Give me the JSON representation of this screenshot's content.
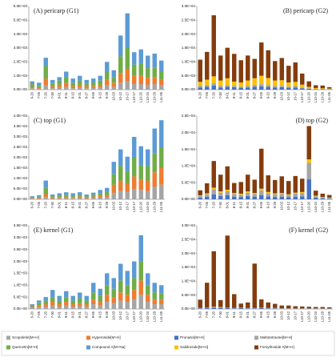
{
  "chart_data": [
    {
      "type": "bar",
      "stacked": true,
      "title": "(A) pericarp (G1)",
      "categories": [
        "6-20",
        "7-05",
        "7-20",
        "7-30",
        "8-01",
        "8-11",
        "8-15",
        "8-21",
        "8-27",
        "9-06",
        "9-15",
        "9-29",
        "10-03",
        "10-12",
        "10-17",
        "L10-17",
        "L10-20",
        "L10-24",
        "L10-29",
        "L11-05"
      ],
      "series": [
        {
          "color": "#a5a5a5",
          "values": [
            100,
            80,
            300,
            100,
            150,
            200,
            100,
            150,
            100,
            120,
            150,
            300,
            200,
            500,
            600,
            400,
            400,
            350,
            400,
            300
          ]
        },
        {
          "color": "#ed7d31",
          "values": [
            100,
            100,
            500,
            150,
            200,
            300,
            150,
            200,
            150,
            150,
            200,
            400,
            300,
            700,
            900,
            600,
            600,
            500,
            500,
            400
          ]
        },
        {
          "color": "#70ad47",
          "values": [
            200,
            150,
            900,
            200,
            300,
            400,
            250,
            300,
            200,
            250,
            300,
            600,
            400,
            1200,
            1500,
            800,
            900,
            700,
            700,
            600
          ]
        },
        {
          "color": "#5b9bd5",
          "values": [
            200,
            170,
            600,
            250,
            250,
            400,
            300,
            350,
            250,
            280,
            350,
            700,
            500,
            1500,
            2500,
            900,
            1000,
            900,
            1000,
            800
          ]
        }
      ],
      "ylim": [
        0,
        6000
      ],
      "yticks": [
        {
          "value": 0,
          "label": "0.0E+00"
        },
        {
          "value": 1000,
          "label": "1.0E+03"
        },
        {
          "value": 2000,
          "label": "2.0E+03"
        },
        {
          "value": 3000,
          "label": "3.0E+03"
        },
        {
          "value": 4000,
          "label": "4.0E+03"
        },
        {
          "value": 5000,
          "label": "5.0E+03"
        },
        {
          "value": 6000,
          "label": "6.0E+03"
        }
      ]
    },
    {
      "type": "bar",
      "stacked": true,
      "title": "(B) pericarp (G2)",
      "categories": [
        "6-20",
        "7-05",
        "7-20",
        "7-30",
        "8-01",
        "8-11",
        "8-15",
        "8-21",
        "8-27",
        "9-06",
        "9-15",
        "9-29",
        "10-03",
        "10-12",
        "10-17",
        "L10-17",
        "L10-20",
        "L10-24",
        "L10-29",
        "L11-05"
      ],
      "series": [
        {
          "color": "#4472c4",
          "values": [
            800,
            1000,
            1500,
            800,
            1000,
            900,
            700,
            800,
            1000,
            1200,
            1000,
            800,
            900,
            700,
            800,
            500,
            300,
            200,
            200,
            100
          ]
        },
        {
          "color": "#a5a5a5",
          "values": [
            500,
            600,
            800,
            500,
            600,
            500,
            400,
            500,
            600,
            800,
            700,
            500,
            500,
            400,
            500,
            300,
            200,
            100,
            100,
            100
          ]
        },
        {
          "color": "#ffc000",
          "values": [
            1500,
            2000,
            2500,
            2000,
            2500,
            1500,
            1500,
            2000,
            2500,
            3000,
            2500,
            2000,
            2000,
            1500,
            1500,
            1000,
            500,
            300,
            200,
            200
          ]
        },
        {
          "color": "#843c0c",
          "values": [
            8000,
            10000,
            22000,
            9000,
            11000,
            10000,
            8000,
            9000,
            7000,
            12000,
            10000,
            7000,
            8000,
            6000,
            7000,
            4000,
            2000,
            1000,
            1000,
            500
          ]
        }
      ],
      "ylim": [
        0,
        30000
      ],
      "yticks": [
        {
          "value": 0,
          "label": "0.0E+00"
        },
        {
          "value": 5000,
          "label": "5.0E+03"
        },
        {
          "value": 10000,
          "label": "1.0E+04"
        },
        {
          "value": 15000,
          "label": "1.5E+04"
        },
        {
          "value": 20000,
          "label": "2.0E+04"
        },
        {
          "value": 25000,
          "label": "2.5E+04"
        },
        {
          "value": 30000,
          "label": "3.0E+04"
        }
      ]
    },
    {
      "type": "bar",
      "stacked": true,
      "title": "(C) top (G1)",
      "categories": [
        "6-20",
        "7-05",
        "7-20",
        "7-30",
        "8-01",
        "8-11",
        "8-15",
        "8-21",
        "8-27",
        "9-06",
        "9-15",
        "9-29",
        "10-03",
        "10-12",
        "10-17",
        "L10-17",
        "L10-20",
        "L10-24",
        "L10-29",
        "L11-05"
      ],
      "series": [
        {
          "color": "#a5a5a5",
          "values": [
            30,
            40,
            100,
            40,
            50,
            60,
            50,
            60,
            40,
            60,
            80,
            100,
            300,
            400,
            350,
            500,
            450,
            400,
            600,
            700
          ]
        },
        {
          "color": "#ed7d31",
          "values": [
            30,
            40,
            150,
            50,
            60,
            70,
            60,
            70,
            50,
            70,
            100,
            100,
            400,
            500,
            400,
            600,
            500,
            500,
            700,
            800
          ]
        },
        {
          "color": "#70ad47",
          "values": [
            40,
            50,
            300,
            60,
            80,
            90,
            80,
            90,
            60,
            90,
            120,
            150,
            500,
            700,
            600,
            900,
            700,
            700,
            900,
            1000
          ]
        },
        {
          "color": "#5b9bd5",
          "values": [
            50,
            70,
            350,
            80,
            100,
            120,
            100,
            120,
            80,
            100,
            150,
            200,
            600,
            800,
            700,
            1000,
            900,
            800,
            1200,
            1300
          ]
        }
      ],
      "ylim": [
        0,
        4000
      ],
      "yticks": [
        {
          "value": 0,
          "label": "0.0E+00"
        },
        {
          "value": 500,
          "label": "5.0E+02"
        },
        {
          "value": 1000,
          "label": "1.0E+03"
        },
        {
          "value": 1500,
          "label": "1.5E+03"
        },
        {
          "value": 2000,
          "label": "2.0E+03"
        },
        {
          "value": 2500,
          "label": "2.5E+03"
        },
        {
          "value": 3000,
          "label": "3.0E+03"
        },
        {
          "value": 3500,
          "label": "3.5E+03"
        },
        {
          "value": 4000,
          "label": "4.0E+03"
        }
      ]
    },
    {
      "type": "bar",
      "stacked": true,
      "title": "(D) top (G2)",
      "categories": [
        "6-20",
        "7-05",
        "7-20",
        "7-30",
        "8-01",
        "8-11",
        "8-15",
        "8-21",
        "8-27",
        "9-06",
        "9-15",
        "9-29",
        "10-03",
        "10-12",
        "10-17",
        "L10-17",
        "L10-20",
        "L10-24",
        "L10-29",
        "L11-05"
      ],
      "series": [
        {
          "color": "#4472c4",
          "values": [
            500,
            800,
            1500,
            1000,
            1200,
            800,
            700,
            1000,
            800,
            1200,
            900,
            700,
            800,
            600,
            800,
            900,
            6000,
            500,
            300,
            200
          ]
        },
        {
          "color": "#a5a5a5",
          "values": [
            500,
            700,
            1500,
            1000,
            1200,
            800,
            700,
            1000,
            800,
            1500,
            900,
            800,
            800,
            700,
            900,
            1000,
            5000,
            400,
            300,
            200
          ]
        },
        {
          "color": "#ffc000",
          "values": [
            200,
            300,
            500,
            400,
            500,
            300,
            300,
            400,
            300,
            500,
            400,
            300,
            300,
            200,
            300,
            300,
            1000,
            200,
            100,
            100
          ]
        },
        {
          "color": "#843c0c",
          "values": [
            1500,
            3000,
            8000,
            5000,
            7000,
            3000,
            3500,
            5000,
            4000,
            12000,
            5000,
            4000,
            5000,
            4000,
            5000,
            4000,
            10000,
            1500,
            1000,
            800
          ]
        }
      ],
      "ylim": [
        0,
        25000
      ],
      "yticks": [
        {
          "value": 0,
          "label": "0.0E+00"
        },
        {
          "value": 5000,
          "label": "5.0E+03"
        },
        {
          "value": 10000,
          "label": "1.0E+04"
        },
        {
          "value": 15000,
          "label": "1.5E+04"
        },
        {
          "value": 20000,
          "label": "2.0E+04"
        },
        {
          "value": 25000,
          "label": "2.5E+04"
        }
      ]
    },
    {
      "type": "bar",
      "stacked": true,
      "title": "(E) kernel (G1)",
      "categories": [
        "6-20",
        "7-05",
        "7-20",
        "7-30",
        "8-01",
        "8-11",
        "8-15",
        "8-21",
        "8-27",
        "9-06",
        "9-15",
        "9-29",
        "10-03",
        "10-12",
        "10-17",
        "L10-17",
        "L10-20",
        "L10-24",
        "L10-29",
        "L11-05"
      ],
      "series": [
        {
          "name": "Scopoletin[M+H]",
          "color": "#a5a5a5",
          "values": [
            50,
            80,
            100,
            150,
            100,
            150,
            100,
            120,
            100,
            200,
            150,
            300,
            250,
            350,
            300,
            400,
            600,
            300,
            200,
            200
          ]
        },
        {
          "name": "Hyperoside[M+H]",
          "color": "#ed7d31",
          "values": [
            50,
            80,
            100,
            150,
            100,
            150,
            100,
            120,
            100,
            200,
            150,
            300,
            250,
            350,
            300,
            400,
            600,
            300,
            200,
            200
          ]
        },
        {
          "name": "Quercetin[M+H]",
          "color": "#70ad47",
          "values": [
            50,
            100,
            150,
            200,
            150,
            200,
            150,
            200,
            150,
            300,
            250,
            400,
            350,
            500,
            400,
            500,
            800,
            400,
            300,
            250
          ]
        },
        {
          "name": "Compound A[M+Na]",
          "color": "#5b9bd5",
          "values": [
            50,
            100,
            150,
            300,
            200,
            250,
            200,
            250,
            200,
            400,
            300,
            500,
            450,
            700,
            600,
            700,
            1100,
            500,
            400,
            350
          ]
        }
      ],
      "ylim": [
        0,
        3500
      ],
      "yticks": [
        {
          "value": 0,
          "label": "0.0E+00"
        },
        {
          "value": 500,
          "label": "5.0E+02"
        },
        {
          "value": 1000,
          "label": "1.0E+03"
        },
        {
          "value": 1500,
          "label": "1.5E+03"
        },
        {
          "value": 2000,
          "label": "2.0E+03"
        },
        {
          "value": 2500,
          "label": "2.5E+03"
        },
        {
          "value": 3000,
          "label": "3.0E+03"
        },
        {
          "value": 3500,
          "label": "3.5E+03"
        }
      ]
    },
    {
      "type": "bar",
      "stacked": true,
      "title": "(F) kernel (G2)",
      "categories": [
        "6-20",
        "7-05",
        "7-20",
        "7-30",
        "8-01",
        "8-11",
        "8-15",
        "8-21",
        "8-27",
        "9-06",
        "9-15",
        "9-29",
        "10-03",
        "10-12",
        "10-17",
        "L10-17",
        "L10-20",
        "L10-24",
        "L10-29",
        "L11-05"
      ],
      "series": [
        {
          "name": "Prunasin[M+H]",
          "color": "#4472c4",
          "values": [
            200,
            300,
            500,
            400,
            300,
            200,
            300,
            200,
            200,
            300,
            200,
            200,
            100,
            100,
            100,
            100,
            100,
            100,
            100,
            100
          ]
        },
        {
          "name": "Maltotetraose[M+H]",
          "color": "#a5a5a5",
          "values": [
            100,
            100,
            200,
            200,
            100,
            100,
            100,
            100,
            100,
            100,
            100,
            100,
            100,
            100,
            50,
            50,
            50,
            50,
            50,
            50
          ]
        },
        {
          "name": "Salidroside[M+H]",
          "color": "#ffc000",
          "values": [
            50,
            50,
            100,
            100,
            50,
            50,
            50,
            50,
            50,
            50,
            50,
            50,
            50,
            50,
            50,
            50,
            50,
            50,
            50,
            50
          ]
        },
        {
          "name": "Forsythoside A[M+H]",
          "color": "#843c0c",
          "values": [
            3000,
            9000,
            20000,
            2500,
            26000,
            5000,
            1500,
            2000,
            16000,
            3000,
            2000,
            1500,
            1000,
            1000,
            800,
            700,
            600,
            500,
            500,
            400
          ]
        }
      ],
      "ylim": [
        0,
        30000
      ],
      "yticks": [
        {
          "value": 0,
          "label": "0.0E+00"
        },
        {
          "value": 5000,
          "label": "5.0E+03"
        },
        {
          "value": 10000,
          "label": "1.0E+04"
        },
        {
          "value": 15000,
          "label": "1.5E+04"
        },
        {
          "value": 20000,
          "label": "2.0E+04"
        },
        {
          "value": 25000,
          "label": "2.5E+04"
        },
        {
          "value": 30000,
          "label": "3.0E+04"
        }
      ]
    }
  ]
}
